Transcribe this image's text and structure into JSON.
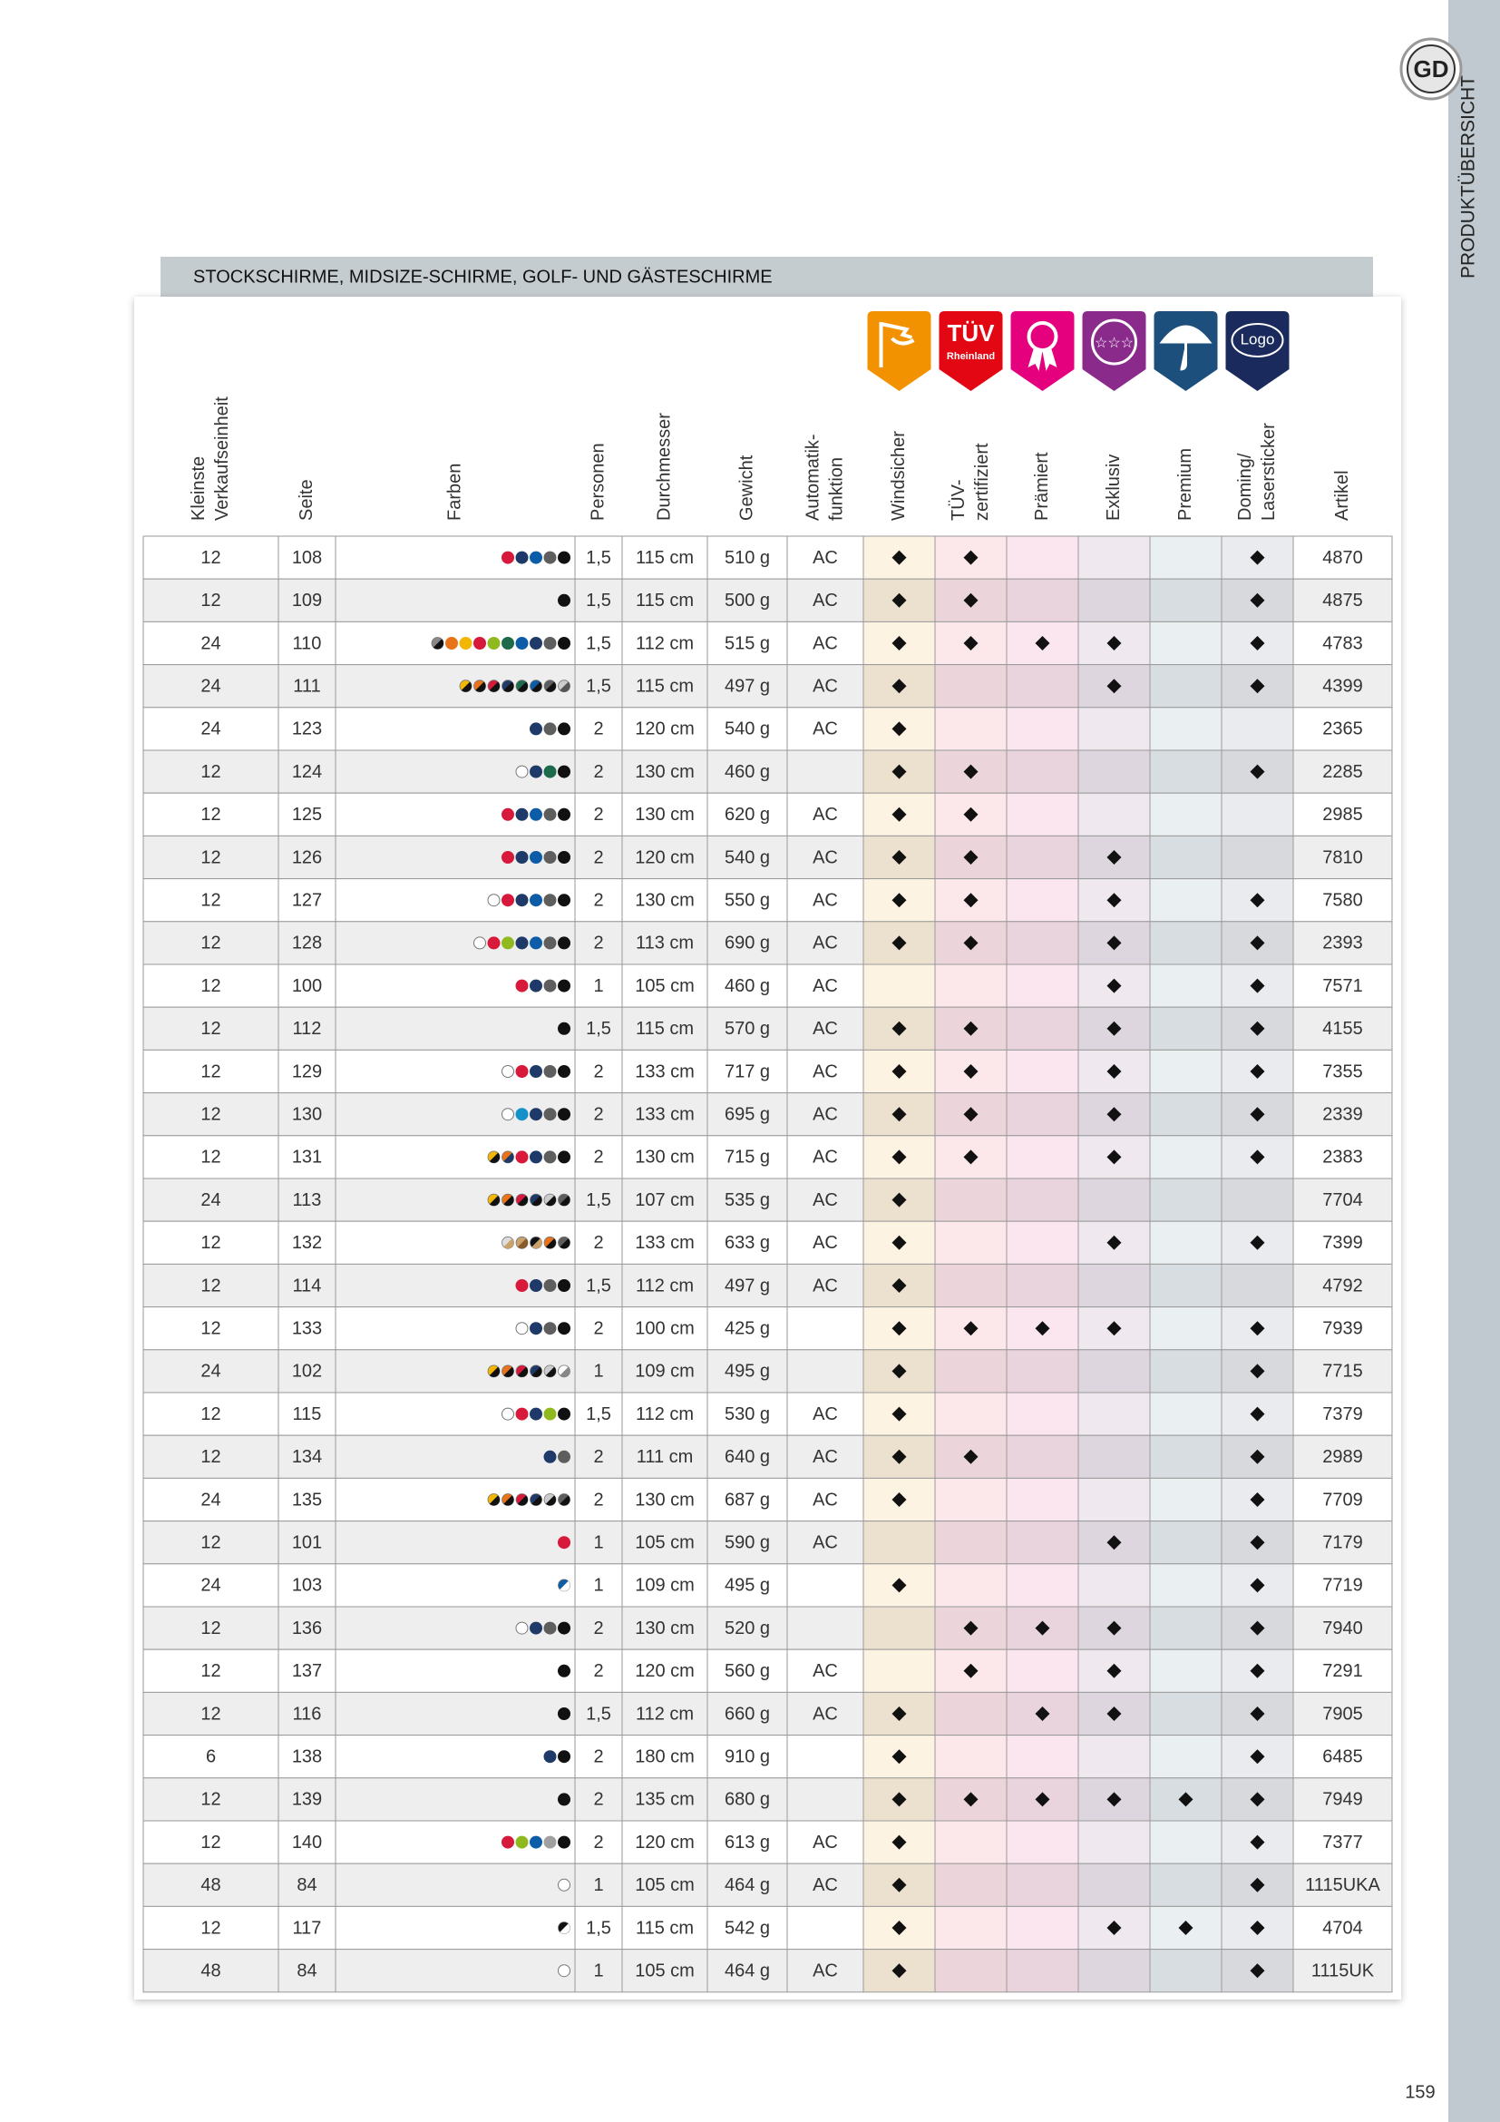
{
  "sidebar": {
    "label": "PRODUKTÜBERSICHT"
  },
  "section_title": "STOCKSCHIRME, MIDSIZE-SCHIRME, GOLF- UND GÄSTESCHIRME",
  "icons": {
    "tuv": [
      "TÜV",
      "Rheinland"
    ],
    "logo": "Logo"
  },
  "table": {
    "headers": [
      [
        "Kleinste",
        "Verkaufseinheit"
      ],
      [
        "Seite"
      ],
      [
        "Farben"
      ],
      [
        "Personen"
      ],
      [
        "Durchmesser"
      ],
      [
        "Gewicht"
      ],
      [
        "Automatik-",
        "funktion"
      ],
      [
        "Windsicher"
      ],
      [
        "TÜV-",
        "zertifiziert"
      ],
      [
        "Prämiert"
      ],
      [
        "Exklusiv"
      ],
      [
        "Premium"
      ],
      [
        "Doming/",
        "Lasersticker"
      ],
      [
        "Artikel"
      ]
    ],
    "rows": [
      [
        "12",
        "108",
        [
          "#d7193b",
          "#1f3a68",
          "#0d5ca8",
          "#5e5e5e",
          "#111111"
        ],
        "1,5",
        "115 cm",
        "510 g",
        "AC",
        true,
        true,
        false,
        false,
        false,
        true,
        "4870"
      ],
      [
        "12",
        "109",
        [
          "#111111"
        ],
        "1,5",
        "115 cm",
        "500 g",
        "AC",
        true,
        true,
        false,
        false,
        false,
        true,
        "4875"
      ],
      [
        "24",
        "110",
        [
          [
            "#888888",
            "#111111"
          ],
          "#e8731a",
          "#f2b705",
          "#d7193b",
          "#8fb91e",
          "#1d6b4a",
          "#0d5ca8",
          "#1f3a68",
          "#5e5e5e",
          "#111111"
        ],
        "1,5",
        "112 cm",
        "515 g",
        "AC",
        true,
        true,
        true,
        true,
        false,
        true,
        "4783"
      ],
      [
        "24",
        "111",
        [
          [
            "#f2b705",
            "#111111"
          ],
          [
            "#e8731a",
            "#111111"
          ],
          [
            "#d7193b",
            "#111111"
          ],
          [
            "#1f3a68",
            "#111111"
          ],
          [
            "#1d6b4a",
            "#111111"
          ],
          [
            "#0d5ca8",
            "#111111"
          ],
          [
            "#5e5e5e",
            "#111111"
          ],
          [
            "#cccccc",
            "#555555"
          ]
        ],
        "1,5",
        "115 cm",
        "497 g",
        "AC",
        true,
        false,
        false,
        true,
        false,
        true,
        "4399"
      ],
      [
        "24",
        "123",
        [
          "#1f3a68",
          "#5e5e5e",
          "#111111"
        ],
        "2",
        "120 cm",
        "540 g",
        "AC",
        true,
        false,
        false,
        false,
        false,
        false,
        "2365"
      ],
      [
        "12",
        "124",
        [
          "#ffffff",
          "#1f3a68",
          "#1d6b4a",
          "#111111"
        ],
        "2",
        "130 cm",
        "460 g",
        null,
        true,
        true,
        false,
        false,
        false,
        true,
        "2285"
      ],
      [
        "12",
        "125",
        [
          "#d7193b",
          "#1f3a68",
          "#0d5ca8",
          "#5e5e5e",
          "#111111"
        ],
        "2",
        "130 cm",
        "620 g",
        "AC",
        true,
        true,
        false,
        false,
        false,
        false,
        "2985"
      ],
      [
        "12",
        "126",
        [
          "#d7193b",
          "#1f3a68",
          "#0d5ca8",
          "#5e5e5e",
          "#111111"
        ],
        "2",
        "120 cm",
        "540 g",
        "AC",
        true,
        true,
        false,
        true,
        false,
        false,
        "7810"
      ],
      [
        "12",
        "127",
        [
          "#ffffff",
          "#d7193b",
          "#1f3a68",
          "#0d5ca8",
          "#5e5e5e",
          "#111111"
        ],
        "2",
        "130 cm",
        "550 g",
        "AC",
        true,
        true,
        false,
        true,
        false,
        true,
        "7580"
      ],
      [
        "12",
        "128",
        [
          "#ffffff",
          "#d7193b",
          "#8fb91e",
          "#1f3a68",
          "#0d5ca8",
          "#5e5e5e",
          "#111111"
        ],
        "2",
        "113 cm",
        "690 g",
        "AC",
        true,
        true,
        false,
        true,
        false,
        true,
        "2393"
      ],
      [
        "12",
        "100",
        [
          "#d7193b",
          "#1f3a68",
          "#5e5e5e",
          "#111111"
        ],
        "1",
        "105 cm",
        "460 g",
        "AC",
        false,
        false,
        false,
        true,
        false,
        true,
        "7571"
      ],
      [
        "12",
        "112",
        [
          "#111111"
        ],
        "1,5",
        "115 cm",
        "570 g",
        "AC",
        true,
        true,
        false,
        true,
        false,
        true,
        "4155"
      ],
      [
        "12",
        "129",
        [
          "#ffffff",
          "#d7193b",
          "#1f3a68",
          "#5e5e5e",
          "#111111"
        ],
        "2",
        "133 cm",
        "717 g",
        "AC",
        true,
        true,
        false,
        true,
        false,
        true,
        "7355"
      ],
      [
        "12",
        "130",
        [
          "#ffffff",
          "#1591c9",
          "#1f3a68",
          "#5e5e5e",
          "#111111"
        ],
        "2",
        "133 cm",
        "695 g",
        "AC",
        true,
        true,
        false,
        true,
        false,
        true,
        "2339"
      ],
      [
        "12",
        "131",
        [
          [
            "#f2b705",
            "#111111"
          ],
          [
            "#e8731a",
            "#1f3a68"
          ],
          "#d7193b",
          "#1f3a68",
          "#5e5e5e",
          "#111111"
        ],
        "2",
        "130 cm",
        "715 g",
        "AC",
        true,
        true,
        false,
        true,
        false,
        true,
        "2383"
      ],
      [
        "24",
        "113",
        [
          [
            "#f2b705",
            "#111111"
          ],
          [
            "#e8731a",
            "#111111"
          ],
          [
            "#d7193b",
            "#111111"
          ],
          [
            "#1f3a68",
            "#111111"
          ],
          [
            "#cccccc",
            "#111111"
          ],
          [
            "#5e5e5e",
            "#111111"
          ]
        ],
        "1,5",
        "107 cm",
        "535 g",
        "AC",
        true,
        false,
        false,
        false,
        false,
        false,
        "7704"
      ],
      [
        "12",
        "132",
        [
          [
            "#dddddd",
            "#c9a36b"
          ],
          [
            "#c9a36b",
            "#8a5a2b"
          ],
          [
            "#111111",
            "#c9a36b"
          ],
          [
            "#e8731a",
            "#111111"
          ],
          [
            "#5e5e5e",
            "#111111"
          ]
        ],
        "2",
        "133 cm",
        "633 g",
        "AC",
        true,
        false,
        false,
        true,
        false,
        true,
        "7399"
      ],
      [
        "12",
        "114",
        [
          "#d7193b",
          "#1f3a68",
          "#5e5e5e",
          "#111111"
        ],
        "1,5",
        "112 cm",
        "497 g",
        "AC",
        true,
        false,
        false,
        false,
        false,
        false,
        "4792"
      ],
      [
        "12",
        "133",
        [
          "#ffffff",
          "#1f3a68",
          "#5e5e5e",
          "#111111"
        ],
        "2",
        "100 cm",
        "425 g",
        null,
        true,
        true,
        true,
        true,
        false,
        true,
        "7939"
      ],
      [
        "24",
        "102",
        [
          [
            "#f2b705",
            "#111111"
          ],
          [
            "#e8731a",
            "#111111"
          ],
          [
            "#d7193b",
            "#111111"
          ],
          [
            "#1f3a68",
            "#111111"
          ],
          [
            "#cccccc",
            "#111111"
          ],
          [
            "#ffffff",
            "#888888"
          ]
        ],
        "1",
        "109 cm",
        "495 g",
        null,
        true,
        false,
        false,
        false,
        false,
        true,
        "7715"
      ],
      [
        "12",
        "115",
        [
          "#ffffff",
          "#d7193b",
          "#1f3a68",
          "#8fb91e",
          "#111111"
        ],
        "1,5",
        "112 cm",
        "530 g",
        "AC",
        true,
        false,
        false,
        false,
        false,
        true,
        "7379"
      ],
      [
        "12",
        "134",
        [
          "#1f3a68",
          "#5e5e5e"
        ],
        "2",
        "111 cm",
        "640 g",
        "AC",
        true,
        true,
        false,
        false,
        false,
        true,
        "2989"
      ],
      [
        "24",
        "135",
        [
          [
            "#f2b705",
            "#111111"
          ],
          [
            "#e8731a",
            "#111111"
          ],
          [
            "#d7193b",
            "#111111"
          ],
          [
            "#1f3a68",
            "#111111"
          ],
          [
            "#cccccc",
            "#111111"
          ],
          [
            "#5e5e5e",
            "#111111"
          ]
        ],
        "2",
        "130 cm",
        "687 g",
        "AC",
        true,
        false,
        false,
        false,
        false,
        true,
        "7709"
      ],
      [
        "12",
        "101",
        [
          "#d7193b"
        ],
        "1",
        "105 cm",
        "590 g",
        "AC",
        false,
        false,
        false,
        true,
        false,
        true,
        "7179"
      ],
      [
        "24",
        "103",
        [
          [
            "#0d5ca8",
            "#ffffff"
          ]
        ],
        "1",
        "109 cm",
        "495 g",
        null,
        true,
        false,
        false,
        false,
        false,
        true,
        "7719"
      ],
      [
        "12",
        "136",
        [
          "#ffffff",
          "#1f3a68",
          "#5e5e5e",
          "#111111"
        ],
        "2",
        "130 cm",
        "520 g",
        null,
        false,
        true,
        true,
        true,
        false,
        true,
        "7940"
      ],
      [
        "12",
        "137",
        [
          "#111111"
        ],
        "2",
        "120 cm",
        "560 g",
        "AC",
        false,
        true,
        false,
        true,
        false,
        true,
        "7291"
      ],
      [
        "12",
        "116",
        [
          "#111111"
        ],
        "1,5",
        "112 cm",
        "660 g",
        "AC",
        true,
        false,
        true,
        true,
        false,
        true,
        "7905"
      ],
      [
        "6",
        "138",
        [
          "#1f3a68",
          "#111111"
        ],
        "2",
        "180 cm",
        "910 g",
        null,
        true,
        false,
        false,
        false,
        false,
        true,
        "6485"
      ],
      [
        "12",
        "139",
        [
          "#111111"
        ],
        "2",
        "135 cm",
        "680 g",
        null,
        true,
        true,
        true,
        true,
        true,
        true,
        "7949"
      ],
      [
        "12",
        "140",
        [
          "#d7193b",
          "#8fb91e",
          "#0d5ca8",
          "#a0a0a0",
          "#111111"
        ],
        "2",
        "120 cm",
        "613 g",
        "AC",
        true,
        false,
        false,
        false,
        false,
        true,
        "7377"
      ],
      [
        "48",
        "84",
        [
          "#ffffff"
        ],
        "1",
        "105 cm",
        "464 g",
        "AC",
        true,
        false,
        false,
        false,
        false,
        true,
        "1115UKA"
      ],
      [
        "12",
        "117",
        [
          [
            "#111111",
            "#ffffff"
          ]
        ],
        "1,5",
        "115 cm",
        "542 g",
        null,
        true,
        false,
        false,
        true,
        true,
        true,
        "4704"
      ],
      [
        "48",
        "84",
        [
          "#ffffff"
        ],
        "1",
        "105 cm",
        "464 g",
        "AC",
        true,
        false,
        false,
        false,
        false,
        true,
        "1115UK"
      ]
    ]
  },
  "page_number": "159"
}
